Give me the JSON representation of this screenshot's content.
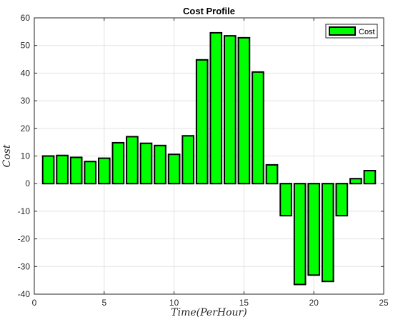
{
  "chart_data": {
    "type": "bar",
    "title": "Cost Profile",
    "xlabel": "Time(PerHour)",
    "ylabel": "Cost",
    "x": [
      1,
      2,
      3,
      4,
      5,
      6,
      7,
      8,
      9,
      10,
      11,
      12,
      13,
      14,
      15,
      16,
      17,
      18,
      19,
      20,
      21,
      22,
      23,
      24
    ],
    "series": [
      {
        "name": "Cost",
        "color": "#00ff00",
        "edge_color": "#000000",
        "values": [
          10.0,
          10.2,
          9.5,
          8.0,
          9.2,
          14.8,
          17.0,
          14.6,
          13.8,
          10.6,
          17.3,
          44.8,
          54.6,
          53.5,
          52.8,
          40.4,
          6.8,
          -11.6,
          -36.5,
          -33.1,
          -35.4,
          -11.6,
          1.8,
          4.7
        ]
      }
    ],
    "xlim": [
      0,
      25
    ],
    "ylim": [
      -40,
      60
    ],
    "xticks": [
      0,
      5,
      10,
      15,
      20,
      25
    ],
    "yticks": [
      -40,
      -30,
      -20,
      -10,
      0,
      10,
      20,
      30,
      40,
      50,
      60
    ],
    "grid": true,
    "legend_position": "top-right"
  }
}
